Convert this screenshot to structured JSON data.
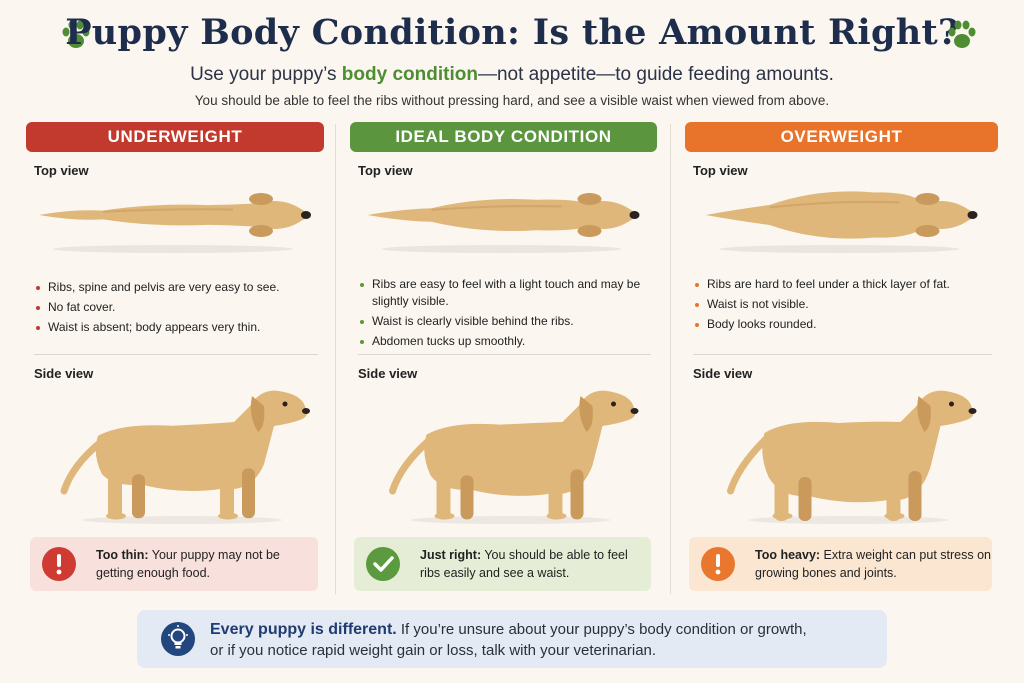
{
  "header": {
    "title": "Puppy Body Condition: Is the Amount Right?",
    "subtitle_pre": "Use your puppy’s ",
    "subtitle_highlight": "body condition",
    "subtitle_post": "—not appetite—to guide feeding amounts.",
    "subline": "You should be able to feel the ribs without pressing hard, and see a visible waist when viewed from above."
  },
  "columns": [
    {
      "heading": "UNDERWEIGHT",
      "color": "#c23a2e",
      "top_view_label": "Top view",
      "side_view_label": "Side view",
      "bullets": [
        "Ribs, spine and pelvis are very easy to see.",
        "No fat cover.",
        "Waist is absent; body appears very thin."
      ],
      "callout_bold": "Too thin:",
      "callout_text": " Your puppy may not be getting enough food.",
      "callout_bg": "#f8e1dc",
      "badge_color": "#cf3b32",
      "badge_icon": "exclamation-icon"
    },
    {
      "heading": "IDEAL BODY CONDITION",
      "color": "#5b963f",
      "top_view_label": "Top view",
      "side_view_label": "Side view",
      "bullets": [
        "Ribs are easy to feel with a light touch and may be slightly visible.",
        "Waist is clearly visible behind the ribs.",
        "Abdomen tucks up smoothly."
      ],
      "callout_bold": "Just right:",
      "callout_text": " You should be able to feel ribs easily and see a waist.",
      "callout_bg": "#e5edd6",
      "badge_color": "#5b9a3e",
      "badge_icon": "check-icon"
    },
    {
      "heading": "OVERWEIGHT",
      "color": "#e7742a",
      "top_view_label": "Top view",
      "side_view_label": "Side view",
      "bullets": [
        "Ribs are hard to feel under a thick layer of fat.",
        "Waist is not visible.",
        "Body looks rounded."
      ],
      "callout_bold": "Too heavy:",
      "callout_text": " Extra weight can put stress on growing bones and joints.",
      "callout_bg": "#fbe6d2",
      "badge_color": "#e9772d",
      "badge_icon": "exclamation-icon"
    }
  ],
  "note": {
    "bold": "Every puppy is different.",
    "text": " If you’re unsure about your puppy’s body condition or growth,",
    "line2": "or if you notice rapid weight gain or loss, talk with your veterinarian.",
    "icon": "lightbulb-icon"
  },
  "colors": {
    "title": "#1f2d4d",
    "dog_fur": "#e0b77a",
    "dog_shade": "#c99a5c",
    "paw": "#4f8d33"
  }
}
